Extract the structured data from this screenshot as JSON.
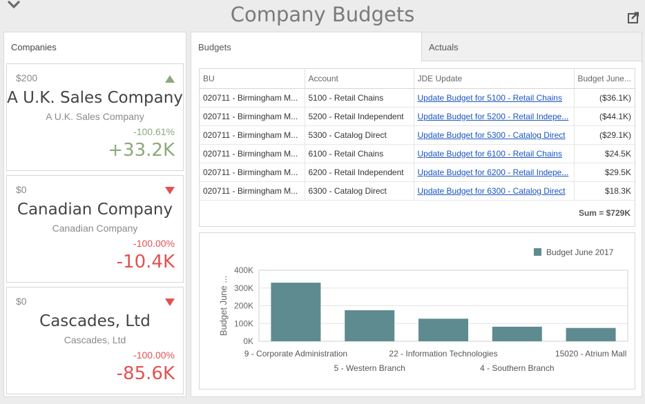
{
  "header": {
    "title": "Company Budgets",
    "collapse_icon": "chevron-down-icon",
    "export_icon": "export-icon"
  },
  "companies": {
    "panel_title": "Companies",
    "cards": [
      {
        "prev": "$200",
        "name": "A U.K. Sales Company",
        "subname": "A U.K. Sales Company",
        "pct": "-100.61%",
        "value": "+33.2K",
        "trend": "up"
      },
      {
        "prev": "$0",
        "name": "Canadian Company",
        "subname": "Canadian Company",
        "pct": "-100.00%",
        "value": "-10.4K",
        "trend": "down"
      },
      {
        "prev": "$0",
        "name": "Cascades, Ltd",
        "subname": "Cascades, Ltd",
        "pct": "-100.00%",
        "value": "-85.6K",
        "trend": "down"
      }
    ]
  },
  "tabs": {
    "budgets": "Budgets",
    "actuals": "Actuals"
  },
  "grid": {
    "columns": [
      "BU",
      "Account",
      "JDE Update",
      "Budget June..."
    ],
    "rows": [
      [
        "020711 - Birmingham M...",
        "5100 - Retail Chains",
        "Update Budget for 5100 - Retail Chains",
        "($36.1K)"
      ],
      [
        "020711 - Birmingham M...",
        "5200 - Retail Independent",
        "Update Budget for 5200 - Retail Indepe...",
        "($44.1K)"
      ],
      [
        "020711 - Birmingham M...",
        "5300 - Catalog Direct",
        "Update Budget for 5300 - Catalog Direct",
        "($29.1K)"
      ],
      [
        "020711 - Birmingham M...",
        "6100 - Retail Chains",
        "Update Budget for 6100 - Retail Chains",
        "$24.5K"
      ],
      [
        "020711 - Birmingham M...",
        "6200 - Retail Independent",
        "Update Budget for 6200 - Retail Indepe...",
        "$29.5K"
      ],
      [
        "020711 - Birmingham M...",
        "6300 - Catalog Direct",
        "Update Budget for 6300 - Catalog Direct",
        "$18.3K"
      ]
    ],
    "sum": "Sum = $729K"
  },
  "colors": {
    "positive": "#8aaa7a",
    "negative": "#e05252",
    "bar": "#5e8b90",
    "link": "#1a55c0"
  },
  "chart_data": {
    "type": "bar",
    "categories": [
      "9 - Corporate Administration",
      "5 - Western Branch",
      "22 - Information Technologies",
      "4 - Southern Branch",
      "15020 - Atrium Mall"
    ],
    "series": [
      {
        "name": "Budget June 2017",
        "values": [
          330000,
          175000,
          127000,
          82000,
          75000
        ]
      }
    ],
    "yticks": [
      "0K",
      "100K",
      "200K",
      "300K",
      "400K"
    ],
    "ylim": [
      0,
      400000
    ],
    "ylabel": "Budget June ...",
    "xlabel": "",
    "legend": "top-right",
    "grid": true
  }
}
